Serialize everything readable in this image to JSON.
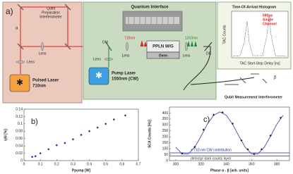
{
  "diagram": {
    "panel_label": "a)",
    "prep_interferometer": [
      "Qubit",
      "Preparation",
      "Interferometer"
    ],
    "quantum_interface": "Quantum Interface",
    "histogram_title": "Time-Of-Arrival Histogram",
    "histogram_note": [
      "590ps",
      "Single",
      "Channel"
    ],
    "histogram_xlabel": "TAC Start-Stop Delay [ns]",
    "histogram_ylabel": "TAC Counts",
    "pulsed_laser": [
      "Pulsed Laser",
      "710nm"
    ],
    "pump_laser": [
      "Pump Laser",
      "1550nm (CW)"
    ],
    "wavelength_710": "710nm",
    "wavelength_1310": "1310nm",
    "ppln": "PPLN W/G",
    "oven": "Oven",
    "dm": "DM",
    "dc": "DC",
    "lens": "Lens",
    "alpha": "α",
    "beta": "β",
    "measurement_interferometer": "Qubit Measurement Interferometer"
  },
  "chart_data": [
    {
      "type": "scatter",
      "title": "b)",
      "x_label": "Ppump [W]",
      "y_label": "ηSI [%]",
      "xlim": [
        0,
        0.7
      ],
      "xticks": [
        0,
        0.1,
        0.2,
        0.3,
        0.4,
        0.5,
        0.6,
        0.7
      ],
      "ylim": [
        0,
        0.14
      ],
      "yticks": [
        0,
        0.02,
        0.04,
        0.06,
        0.08,
        0.1,
        0.12,
        0.14
      ],
      "series": [
        {
          "mode": "markers",
          "color": "#1d2b8c",
          "x": [
            0.05,
            0.07,
            0.1,
            0.15,
            0.2,
            0.25,
            0.3,
            0.35,
            0.4,
            0.45,
            0.5,
            0.55,
            0.62
          ],
          "values": [
            0.01,
            0.012,
            0.02,
            0.031,
            0.042,
            0.048,
            0.058,
            0.07,
            0.08,
            0.09,
            0.1,
            0.112,
            0.123
          ]
        }
      ]
    },
    {
      "type": "scatter",
      "title": "c)",
      "x_label": "Phase α - β [arb. units]",
      "y_label": "SCA Counts [Hz]",
      "xlim": [
        295,
        390
      ],
      "xticks": [
        300,
        320,
        340,
        360,
        380
      ],
      "ylim": [
        0,
        450
      ],
      "yticks": [
        0,
        50,
        100,
        150,
        200,
        250,
        300,
        350,
        400
      ],
      "series": [
        {
          "mode": "line",
          "color": "#3a3aa8",
          "x": [
            300,
            305,
            310,
            315,
            320,
            325,
            330,
            335,
            340,
            345,
            350,
            355,
            360,
            365,
            370,
            375,
            380,
            385
          ],
          "values": [
            112,
            57,
            57,
            112,
            205,
            306,
            381,
            410,
            381,
            306,
            205,
            112,
            57,
            57,
            112,
            205,
            306,
            381
          ]
        },
        {
          "mode": "markers",
          "color": "#222222",
          "x": [
            305,
            315,
            322,
            330,
            337,
            345,
            352,
            357,
            362,
            368,
            375,
            383
          ],
          "values": [
            60,
            115,
            260,
            385,
            405,
            310,
            170,
            95,
            55,
            95,
            210,
            360
          ]
        }
      ],
      "reference_lines": [
        {
          "label": "+ 710 nm CW contribution",
          "value": 65,
          "color": "#1d2b8c"
        },
        {
          "label": "detector dark counts level",
          "value": 40,
          "color": "#333333"
        }
      ]
    }
  ]
}
